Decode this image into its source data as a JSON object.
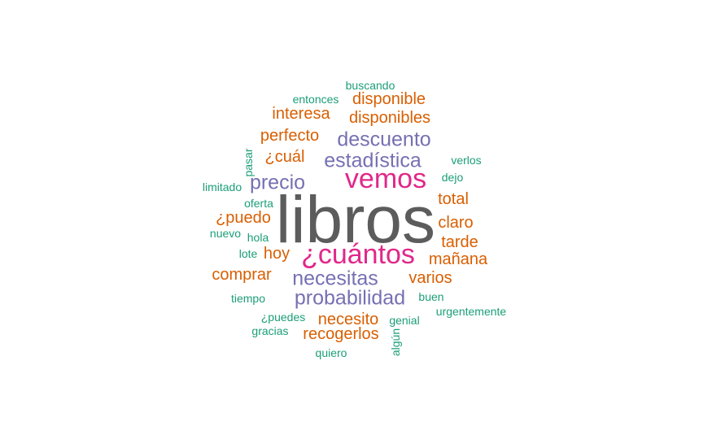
{
  "palette": {
    "gray": "#5c5c5c",
    "magenta": "#e0288a",
    "purple": "#7570b3",
    "orange": "#d95f02",
    "teal": "#1b9e77"
  },
  "words": [
    {
      "text": "libros",
      "weight": 1.0,
      "color": "gray"
    },
    {
      "text": "vemos",
      "weight": 0.42,
      "color": "magenta"
    },
    {
      "text": "¿cuántos",
      "weight": 0.42,
      "color": "magenta"
    },
    {
      "text": "descuento",
      "weight": 0.32,
      "color": "purple"
    },
    {
      "text": "estadística",
      "weight": 0.32,
      "color": "purple"
    },
    {
      "text": "precio",
      "weight": 0.32,
      "color": "purple"
    },
    {
      "text": "necesitas",
      "weight": 0.32,
      "color": "purple"
    },
    {
      "text": "probabilidad",
      "weight": 0.32,
      "color": "purple"
    },
    {
      "text": "disponible",
      "weight": 0.25,
      "color": "orange"
    },
    {
      "text": "disponibles",
      "weight": 0.25,
      "color": "orange"
    },
    {
      "text": "interesa",
      "weight": 0.25,
      "color": "orange"
    },
    {
      "text": "perfecto",
      "weight": 0.25,
      "color": "orange"
    },
    {
      "text": "¿cuál",
      "weight": 0.25,
      "color": "orange"
    },
    {
      "text": "total",
      "weight": 0.25,
      "color": "orange"
    },
    {
      "text": "¿puedo",
      "weight": 0.25,
      "color": "orange"
    },
    {
      "text": "claro",
      "weight": 0.25,
      "color": "orange"
    },
    {
      "text": "tarde",
      "weight": 0.25,
      "color": "orange"
    },
    {
      "text": "hoy",
      "weight": 0.25,
      "color": "orange"
    },
    {
      "text": "mañana",
      "weight": 0.25,
      "color": "orange"
    },
    {
      "text": "comprar",
      "weight": 0.25,
      "color": "orange"
    },
    {
      "text": "varios",
      "weight": 0.25,
      "color": "orange"
    },
    {
      "text": "necesito",
      "weight": 0.25,
      "color": "orange"
    },
    {
      "text": "recogerlos",
      "weight": 0.25,
      "color": "orange"
    },
    {
      "text": "buscando",
      "weight": 0.15,
      "color": "teal"
    },
    {
      "text": "entonces",
      "weight": 0.15,
      "color": "teal"
    },
    {
      "text": "pasar",
      "weight": 0.15,
      "color": "teal"
    },
    {
      "text": "verlos",
      "weight": 0.15,
      "color": "teal"
    },
    {
      "text": "dejo",
      "weight": 0.15,
      "color": "teal"
    },
    {
      "text": "limitado",
      "weight": 0.15,
      "color": "teal"
    },
    {
      "text": "oferta",
      "weight": 0.15,
      "color": "teal"
    },
    {
      "text": "nuevo",
      "weight": 0.15,
      "color": "teal"
    },
    {
      "text": "hola",
      "weight": 0.15,
      "color": "teal"
    },
    {
      "text": "lote",
      "weight": 0.15,
      "color": "teal"
    },
    {
      "text": "tiempo",
      "weight": 0.15,
      "color": "teal"
    },
    {
      "text": "buen",
      "weight": 0.15,
      "color": "teal"
    },
    {
      "text": "urgentemente",
      "weight": 0.15,
      "color": "teal"
    },
    {
      "text": "¿puedes",
      "weight": 0.15,
      "color": "teal"
    },
    {
      "text": "genial",
      "weight": 0.15,
      "color": "teal"
    },
    {
      "text": "gracias",
      "weight": 0.15,
      "color": "teal"
    },
    {
      "text": "algún",
      "weight": 0.15,
      "color": "teal"
    },
    {
      "text": "quiero",
      "weight": 0.15,
      "color": "teal"
    }
  ]
}
